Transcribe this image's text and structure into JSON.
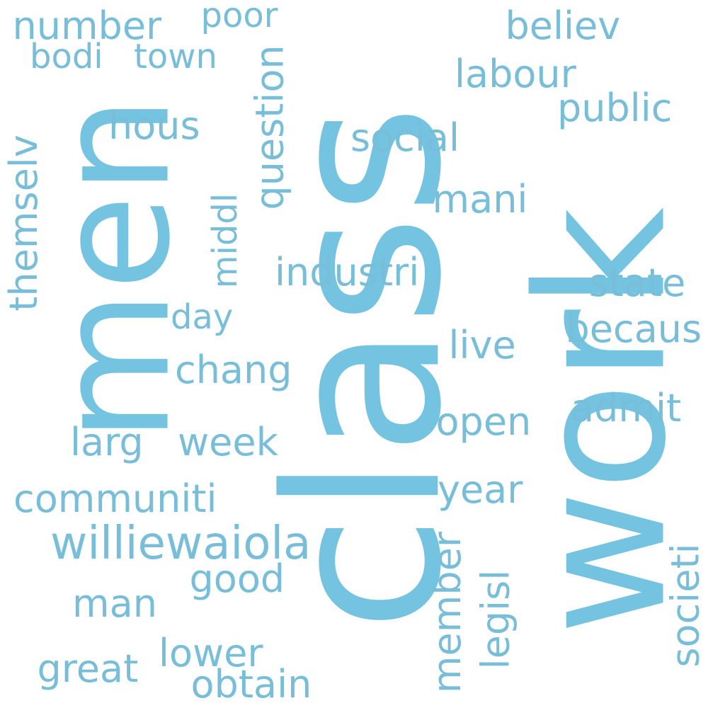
{
  "palette": {
    "primary": "#73c3e1",
    "secondary": "#78bed9"
  },
  "words": [
    {
      "text": "class",
      "weight": 1.0,
      "orientation": "vertical",
      "color": "#73c3e1"
    },
    {
      "text": "work",
      "weight": 0.72,
      "orientation": "vertical",
      "color": "#73c3e1"
    },
    {
      "text": "men",
      "weight": 0.56,
      "orientation": "vertical",
      "color": "#73c3e1"
    },
    {
      "text": "williewaiola",
      "weight": 0.2,
      "orientation": "horizontal",
      "color": "#78bed9"
    },
    {
      "text": "communiti",
      "weight": 0.16,
      "orientation": "horizontal",
      "color": "#78bed9"
    },
    {
      "text": "industri",
      "weight": 0.16,
      "orientation": "horizontal",
      "color": "#78bed9"
    },
    {
      "text": "social",
      "weight": 0.16,
      "orientation": "horizontal",
      "color": "#78bed9"
    },
    {
      "text": "themselv",
      "weight": 0.16,
      "orientation": "vertical",
      "color": "#78bed9"
    },
    {
      "text": "question",
      "weight": 0.16,
      "orientation": "vertical",
      "color": "#78bed9"
    },
    {
      "text": "hous",
      "weight": 0.16,
      "orientation": "horizontal",
      "color": "#78bed9"
    },
    {
      "text": "number",
      "weight": 0.16,
      "orientation": "horizontal",
      "color": "#78bed9"
    },
    {
      "text": "labour",
      "weight": 0.16,
      "orientation": "horizontal",
      "color": "#78bed9"
    },
    {
      "text": "believ",
      "weight": 0.16,
      "orientation": "horizontal",
      "color": "#78bed9"
    },
    {
      "text": "public",
      "weight": 0.16,
      "orientation": "horizontal",
      "color": "#78bed9"
    },
    {
      "text": "becaus",
      "weight": 0.16,
      "orientation": "horizontal",
      "color": "#78bed9"
    },
    {
      "text": "state",
      "weight": 0.16,
      "orientation": "horizontal",
      "color": "#78bed9"
    },
    {
      "text": "admit",
      "weight": 0.16,
      "orientation": "horizontal",
      "color": "#78bed9"
    },
    {
      "text": "open",
      "weight": 0.16,
      "orientation": "horizontal",
      "color": "#78bed9"
    },
    {
      "text": "year",
      "weight": 0.16,
      "orientation": "horizontal",
      "color": "#78bed9"
    },
    {
      "text": "live",
      "weight": 0.16,
      "orientation": "horizontal",
      "color": "#78bed9"
    },
    {
      "text": "mani",
      "weight": 0.16,
      "orientation": "horizontal",
      "color": "#78bed9"
    },
    {
      "text": "chang",
      "weight": 0.16,
      "orientation": "horizontal",
      "color": "#78bed9"
    },
    {
      "text": "week",
      "weight": 0.16,
      "orientation": "horizontal",
      "color": "#78bed9"
    },
    {
      "text": "larg",
      "weight": 0.16,
      "orientation": "horizontal",
      "color": "#78bed9"
    },
    {
      "text": "good",
      "weight": 0.16,
      "orientation": "horizontal",
      "color": "#78bed9"
    },
    {
      "text": "man",
      "weight": 0.16,
      "orientation": "horizontal",
      "color": "#78bed9"
    },
    {
      "text": "great",
      "weight": 0.16,
      "orientation": "horizontal",
      "color": "#78bed9"
    },
    {
      "text": "lower",
      "weight": 0.16,
      "orientation": "horizontal",
      "color": "#78bed9"
    },
    {
      "text": "obtain",
      "weight": 0.16,
      "orientation": "horizontal",
      "color": "#78bed9"
    },
    {
      "text": "member",
      "weight": 0.16,
      "orientation": "vertical",
      "color": "#78bed9"
    },
    {
      "text": "legisl",
      "weight": 0.16,
      "orientation": "vertical",
      "color": "#78bed9"
    },
    {
      "text": "societi",
      "weight": 0.16,
      "orientation": "vertical",
      "color": "#78bed9"
    },
    {
      "text": "middl",
      "weight": 0.14,
      "orientation": "vertical",
      "color": "#78bed9"
    },
    {
      "text": "day",
      "weight": 0.14,
      "orientation": "horizontal",
      "color": "#78bed9"
    },
    {
      "text": "poor",
      "weight": 0.14,
      "orientation": "horizontal",
      "color": "#78bed9"
    },
    {
      "text": "bodi",
      "weight": 0.14,
      "orientation": "horizontal",
      "color": "#78bed9"
    },
    {
      "text": "town",
      "weight": 0.14,
      "orientation": "horizontal",
      "color": "#78bed9"
    }
  ]
}
